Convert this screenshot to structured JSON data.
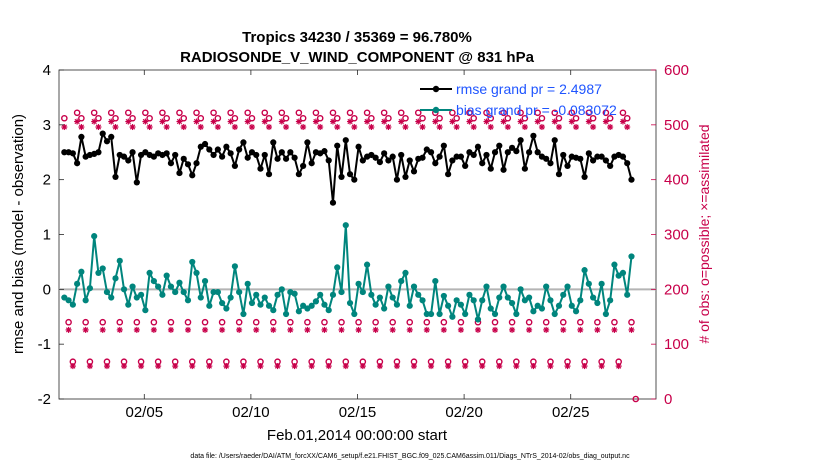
{
  "chart_data": {
    "type": "line",
    "title_line1": "Tropics 34230 / 35369 = 96.780%",
    "title_line2": "RADIOSONDE_V_WIND_COMPONENT @ 831 hPa",
    "ylabel_left": "rmse and bias (model - observation)",
    "ylabel_right": "# of obs: o=possible; ×=assimilated",
    "xlabel": "Feb.01,2014 00:00:00 start",
    "footer": "data file: /Users/raeder/DAI/ATM_forcXX/CAM6_setup/f.e21.FHIST_BGC.f09_025.CAM6assim.011/Diags_NTrS_2014-02/obs_diag_output.nc",
    "x_range": [
      1,
      29
    ],
    "ylim_left": [
      -2,
      4
    ],
    "ylim_right": [
      0,
      600
    ],
    "yticks_left": [
      -2,
      -1,
      0,
      1,
      2,
      3,
      4
    ],
    "yticks_right": [
      0,
      100,
      200,
      300,
      400,
      500,
      600
    ],
    "xtick_values": [
      5,
      10,
      15,
      20,
      25
    ],
    "xtick_labels": [
      "02/05",
      "02/10",
      "02/15",
      "02/20",
      "02/25"
    ],
    "legend": [
      {
        "label": "rmse grand pr =  2.4987",
        "color": "#000000"
      },
      {
        "label": "bias grand pr = -0.083072",
        "color": "#00857d"
      }
    ],
    "colors": {
      "rmse": "#000000",
      "bias": "#00857d",
      "obs": "#c8004a",
      "zero_line": "#b4b4b4",
      "legend_text": "#1f55ff"
    },
    "cycle_pattern": "obs counts cycle every 4 analysis times (00Z, 06Z, 12Z, 18Z)",
    "rmse_values": [
      2.5,
      2.5,
      2.48,
      2.3,
      2.78,
      2.42,
      2.45,
      2.47,
      2.5,
      2.84,
      2.7,
      2.78,
      2.05,
      2.45,
      2.42,
      2.35,
      2.5,
      1.95,
      2.45,
      2.5,
      2.45,
      2.42,
      2.48,
      2.45,
      2.48,
      2.3,
      2.45,
      2.12,
      2.38,
      2.28,
      2.08,
      2.3,
      2.6,
      2.65,
      2.55,
      2.45,
      2.55,
      2.42,
      2.6,
      2.48,
      2.25,
      2.55,
      2.68,
      2.4,
      2.5,
      2.45,
      2.2,
      2.45,
      2.1,
      2.68,
      2.38,
      2.5,
      2.38,
      2.5,
      2.4,
      2.1,
      2.25,
      2.68,
      2.3,
      2.5,
      2.48,
      2.52,
      2.35,
      1.58,
      2.62,
      2.05,
      2.72,
      2.1,
      2.0,
      2.6,
      2.35,
      2.42,
      2.45,
      2.4,
      2.32,
      2.48,
      2.35,
      2.42,
      2.0,
      2.45,
      2.05,
      2.35,
      2.15,
      2.38,
      2.4,
      2.55,
      2.5,
      2.3,
      2.42,
      2.62,
      2.1,
      2.35,
      2.42,
      2.42,
      2.25,
      2.5,
      2.45,
      2.6,
      2.3,
      2.45,
      2.2,
      2.5,
      2.62,
      2.18,
      2.5,
      2.58,
      2.52,
      2.72,
      2.2,
      2.5,
      2.8,
      2.5,
      2.42,
      2.38,
      2.3,
      2.72,
      2.1,
      2.45,
      2.25,
      2.42,
      2.4,
      2.38,
      2.05,
      2.48,
      2.35,
      2.42,
      2.42,
      2.35,
      2.25,
      2.42,
      2.45,
      2.42,
      2.3,
      2.0
    ],
    "bias_values": [
      -0.15,
      -0.2,
      -0.28,
      0.1,
      0.32,
      -0.2,
      0.02,
      0.97,
      0.3,
      0.38,
      -0.05,
      -0.15,
      0.2,
      0.52,
      0.0,
      -0.28,
      0.05,
      -0.15,
      -0.1,
      -0.38,
      0.3,
      0.15,
      0.05,
      -0.1,
      0.25,
      0.05,
      -0.05,
      0.12,
      -0.05,
      -0.2,
      0.5,
      0.3,
      -0.15,
      0.15,
      -0.3,
      -0.05,
      -0.05,
      -0.25,
      -0.35,
      -0.15,
      0.42,
      -0.05,
      -0.45,
      0.1,
      -0.25,
      -0.1,
      -0.28,
      -0.15,
      -0.3,
      -0.38,
      -0.1,
      0.0,
      -0.45,
      -0.05,
      -0.08,
      -0.4,
      -0.3,
      -0.35,
      -0.3,
      -0.22,
      -0.1,
      -0.28,
      -0.38,
      -0.1,
      0.4,
      -0.05,
      1.17,
      -0.25,
      -0.45,
      0.1,
      -0.05,
      0.45,
      -0.1,
      -0.28,
      -0.15,
      -0.35,
      0.05,
      -0.15,
      -0.28,
      0.15,
      0.3,
      -0.3,
      0.05,
      -0.1,
      -0.2,
      -0.45,
      -0.45,
      0.15,
      -0.45,
      -0.12,
      -0.3,
      -0.5,
      -0.2,
      -0.28,
      -0.45,
      -0.1,
      -0.2,
      -0.55,
      -0.2,
      0.05,
      -0.35,
      -0.45,
      -0.15,
      0.05,
      -0.15,
      -0.25,
      -0.45,
      0.0,
      -0.2,
      -0.15,
      -0.4,
      -0.3,
      -0.35,
      0.05,
      -0.2,
      -0.45,
      -0.3,
      -0.1,
      0.05,
      -0.3,
      -0.4,
      -0.2,
      0.35,
      0.1,
      -0.15,
      -0.25,
      0.1,
      -0.45,
      -0.2,
      0.45,
      0.25,
      0.3,
      -0.1,
      0.6
    ],
    "obs_possible_cycle": [
      512,
      140,
      68,
      522
    ],
    "obs_assimilated_cycle": [
      496,
      126,
      60,
      506
    ]
  }
}
